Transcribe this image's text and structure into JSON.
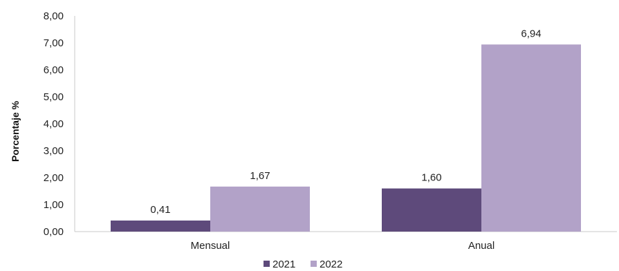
{
  "chart_data": {
    "type": "bar",
    "title": "",
    "xlabel": "",
    "ylabel": "Porcentaje %",
    "categories": [
      "Mensual",
      "Anual"
    ],
    "series": [
      {
        "name": "2021",
        "values": [
          0.41,
          1.6
        ],
        "labels": [
          "0,41",
          "1,60"
        ],
        "color": "#5e4a7b"
      },
      {
        "name": "2022",
        "values": [
          1.67,
          6.94
        ],
        "labels": [
          "1,67",
          "6,94"
        ],
        "color": "#b2a2c8"
      }
    ],
    "ylim": [
      0,
      8
    ],
    "yticks": [
      "0,00",
      "1,00",
      "2,00",
      "3,00",
      "4,00",
      "5,00",
      "6,00",
      "7,00",
      "8,00"
    ],
    "grid": false,
    "legend_position": "bottom"
  }
}
